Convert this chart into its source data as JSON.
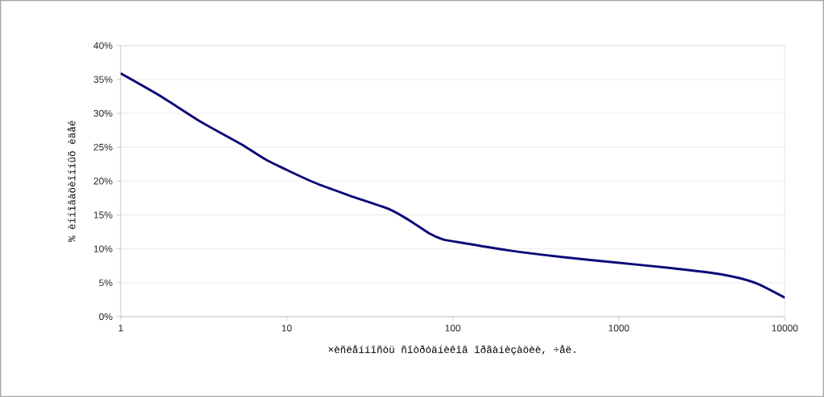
{
  "chart_data": {
    "type": "line",
    "xlabel": "×èñëåííîñòü ñîòðóäíèêîâ îðãàíèçàöèè, ÷åë.",
    "ylabel": "% èííîâàöèîííûõ èäåé",
    "log": "x",
    "grid": "y",
    "marker": "none",
    "line_style": "solid",
    "xlim": [
      1,
      10000
    ],
    "xticks": [
      1,
      10,
      100,
      1000,
      10000
    ],
    "ylim": [
      0,
      40
    ],
    "yticks": [
      {
        "value": 0,
        "label": "0%"
      },
      {
        "value": 5,
        "label": "5%"
      },
      {
        "value": 10,
        "label": "10%"
      },
      {
        "value": 15,
        "label": "15%"
      },
      {
        "value": 20,
        "label": "20%"
      },
      {
        "value": 25,
        "label": "25%"
      },
      {
        "value": 30,
        "label": "30%"
      },
      {
        "value": 35,
        "label": "35%"
      },
      {
        "value": 40,
        "label": "40%"
      }
    ],
    "series": [
      {
        "color": "#0a0a78",
        "x": [
          1,
          1.75,
          3.06,
          5.35,
          7.7,
          14.6,
          23.7,
          41,
          54,
          72,
          87,
          101,
          214,
          452,
          946,
          2000,
          4230,
          6610,
          10000
        ],
        "values": [
          35.9,
          32.5,
          28.7,
          25.4,
          23.0,
          19.8,
          17.9,
          15.9,
          14.3,
          12.3,
          11.4,
          11.1,
          9.8,
          8.8,
          8.0,
          7.2,
          6.2,
          5.0,
          2.8
        ]
      }
    ]
  }
}
